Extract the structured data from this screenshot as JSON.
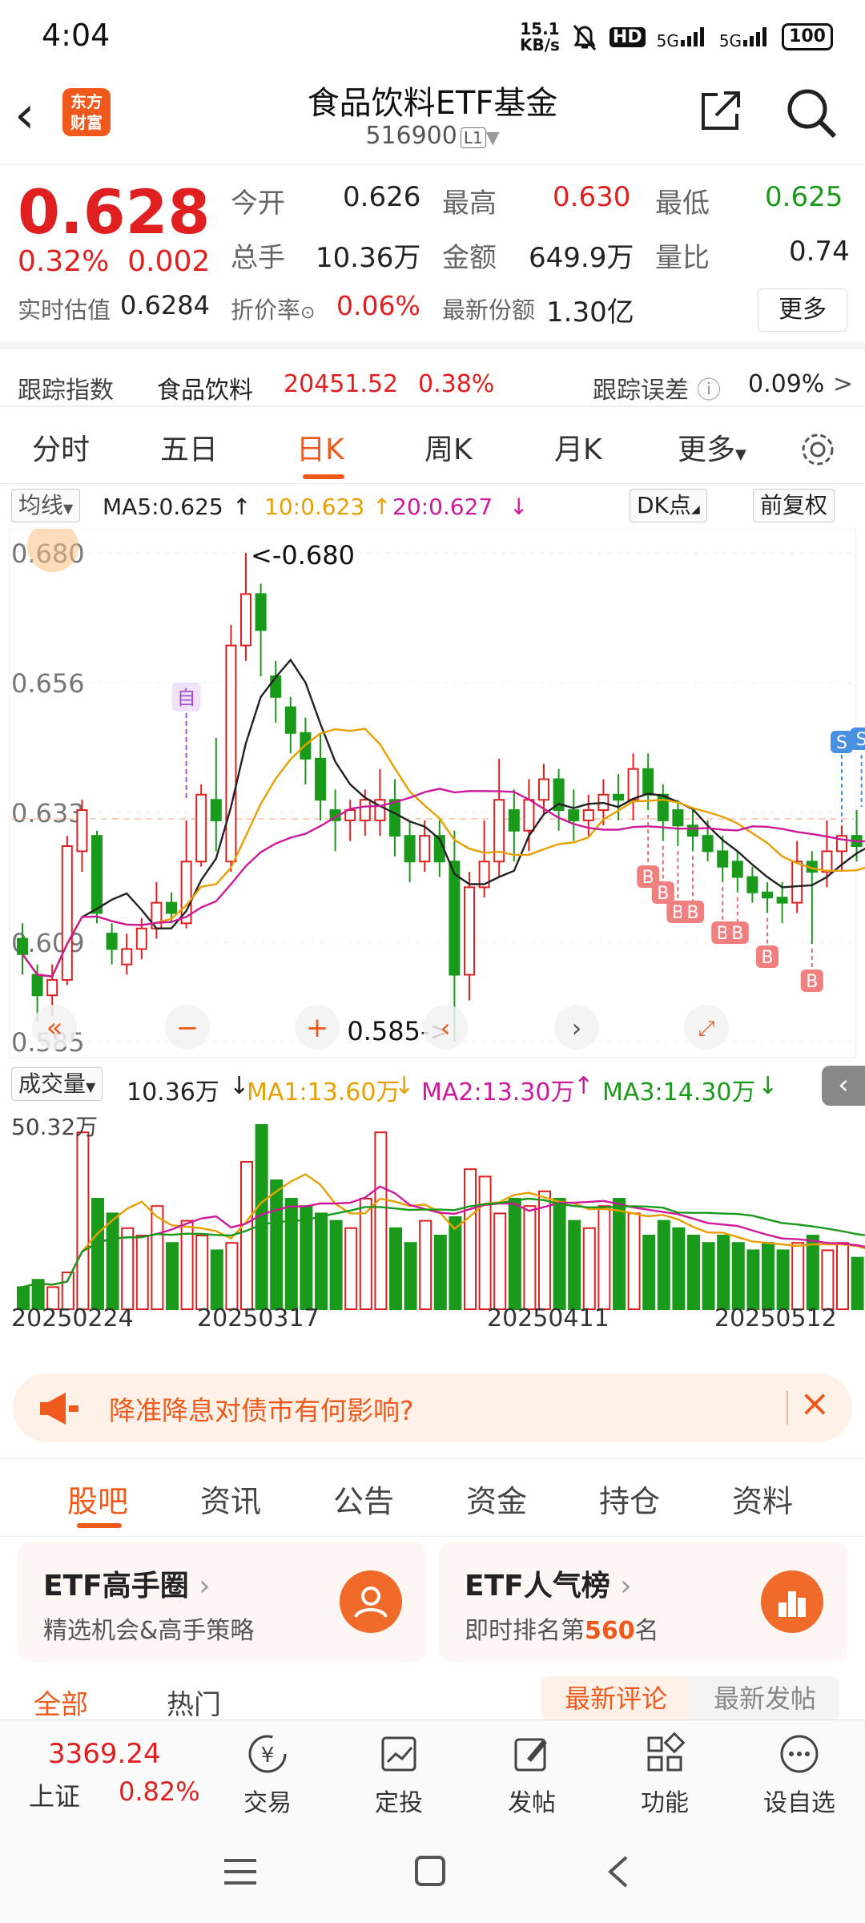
{
  "status": {
    "time": "4:04",
    "net_speed": "15.1",
    "net_unit": "KB/s",
    "hd": "HD",
    "sig1": "5G",
    "sig2": "5G",
    "battery": "100"
  },
  "header": {
    "logo_line1": "东方",
    "logo_line2": "财富",
    "title": "食品饮料ETF基金",
    "code": "516900",
    "level": "L1"
  },
  "quote": {
    "price": "0.628",
    "pct": "0.32%",
    "chg": "0.002",
    "open_label": "今开",
    "open": "0.626",
    "high_label": "最高",
    "high": "0.630",
    "low_label": "最低",
    "low": "0.625",
    "vol_label": "总手",
    "vol": "10.36万",
    "amt_label": "金额",
    "amt": "649.9万",
    "ratio_label": "量比",
    "ratio": "0.74",
    "iopv_label": "实时估值",
    "iopv": "0.6284",
    "disc_label": "折价率",
    "disc": "0.06%",
    "share_label": "最新份额",
    "share": "1.30亿",
    "more": "更多"
  },
  "tracking": {
    "label": "跟踪指数",
    "index_name": "食品饮料",
    "index_value": "20451.52",
    "index_pct": "0.38%",
    "err_label": "跟踪误差",
    "err": "0.09%"
  },
  "ktabs": [
    "分时",
    "五日",
    "日K",
    "周K",
    "月K",
    "更多"
  ],
  "kbar": {
    "type": "均线",
    "ma5": "MA5:0.625",
    "ma10": "10:0.623",
    "ma20": "20:0.627",
    "dk": "DK点",
    "fq": "前复权"
  },
  "kchart": {
    "y_ticks": [
      "0.680",
      "0.656",
      "0.633",
      "0.609",
      "0.585"
    ],
    "hi_label": "<-0.680",
    "lo_label": "0.585->",
    "marker_zi": "自",
    "marker_s": "S",
    "marker_b": "B"
  },
  "volbar": {
    "label": "成交量",
    "val": "10.36万",
    "ma1": "MA1:13.60万",
    "ma2": "MA2:13.30万",
    "ma3": "MA3:14.30万",
    "max": "50.32万"
  },
  "dates": [
    "20250224",
    "20250317",
    "20250411",
    "20250512"
  ],
  "banner": {
    "text": "降准降息对债市有何影响?"
  },
  "bottom_tabs": [
    "股吧",
    "资讯",
    "公告",
    "资金",
    "持仓",
    "资料"
  ],
  "cards": [
    {
      "title": "ETF高手圈",
      "sub": "精选机会&高手策略"
    },
    {
      "title": "ETF人气榜",
      "sub_pre": "即时排名第",
      "rank": "560",
      "sub_post": "名"
    }
  ],
  "filters": {
    "all": "全部",
    "hot": "热门",
    "newest_comment": "最新评论",
    "newest_post": "最新发帖"
  },
  "footer": {
    "index_value": "3369.24",
    "index_name": "上证",
    "index_pct": "0.82%",
    "trade": "交易",
    "invest": "定投",
    "post": "发帖",
    "func": "功能",
    "watch": "设自选"
  },
  "colors": {
    "up": "#e02020",
    "down": "#1a9a1a",
    "accent": "#ef5a1c"
  }
}
